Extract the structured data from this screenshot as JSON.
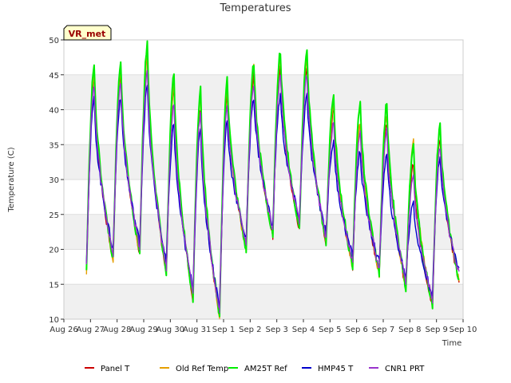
{
  "chart_data": {
    "type": "line",
    "title": "Temperatures",
    "xlabel": "Time",
    "ylabel": "Temperature (C)",
    "ylim": [
      10,
      50
    ],
    "xlim": [
      "2024-08-26",
      "2024-09-10"
    ],
    "yticks": [
      10,
      15,
      20,
      25,
      30,
      35,
      40,
      45,
      50
    ],
    "xticks": [
      "Aug 26",
      "Aug 27",
      "Aug 28",
      "Aug 29",
      "Aug 30",
      "Aug 31",
      "Sep 1",
      "Sep 2",
      "Sep 3",
      "Sep 4",
      "Sep 5",
      "Sep 6",
      "Sep 7",
      "Sep 8",
      "Sep 9",
      "Sep 10"
    ],
    "grid": true,
    "legend_position": "bottom",
    "annotation": "VR_met",
    "peaks": [
      {
        "day": "Aug 27",
        "min": 17.0,
        "panel": 44.5,
        "oldref": 45.5,
        "am25t": 46.5,
        "hmp45": 41.5,
        "cnr1": 43.5
      },
      {
        "day": "Aug 28",
        "min": 18.5,
        "panel": 45.0,
        "oldref": 45.5,
        "am25t": 46.5,
        "hmp45": 42.0,
        "cnr1": 44.0
      },
      {
        "day": "Aug 29",
        "min": 19.5,
        "panel": 47.5,
        "oldref": 48.0,
        "am25t": 49.5,
        "hmp45": 43.5,
        "cnr1": 46.0
      },
      {
        "day": "Aug 30",
        "min": 16.5,
        "panel": 43.5,
        "oldref": 44.0,
        "am25t": 45.0,
        "hmp45": 38.0,
        "cnr1": 41.0
      },
      {
        "day": "Aug 31",
        "min": 13.0,
        "panel": 40.5,
        "oldref": 41.5,
        "am25t": 43.0,
        "hmp45": 37.0,
        "cnr1": 39.5
      },
      {
        "day": "Sep 1",
        "min": 10.5,
        "panel": 42.5,
        "oldref": 43.0,
        "am25t": 44.5,
        "hmp45": 38.5,
        "cnr1": 41.0
      },
      {
        "day": "Sep 2",
        "min": 20.0,
        "panel": 45.0,
        "oldref": 46.0,
        "am25t": 47.0,
        "hmp45": 42.0,
        "cnr1": 44.0
      },
      {
        "day": "Sep 3",
        "min": 22.0,
        "panel": 46.0,
        "oldref": 47.5,
        "am25t": 48.5,
        "hmp45": 42.0,
        "cnr1": 45.0
      },
      {
        "day": "Sep 4",
        "min": 23.0,
        "panel": 46.5,
        "oldref": 47.5,
        "am25t": 48.5,
        "hmp45": 42.0,
        "cnr1": 45.0
      },
      {
        "day": "Sep 5",
        "min": 21.0,
        "panel": 40.0,
        "oldref": 40.5,
        "am25t": 42.0,
        "hmp45": 35.5,
        "cnr1": 38.0
      },
      {
        "day": "Sep 6",
        "min": 17.5,
        "panel": 38.0,
        "oldref": 38.5,
        "am25t": 41.0,
        "hmp45": 34.0,
        "cnr1": 36.5
      },
      {
        "day": "Sep 7",
        "min": 16.5,
        "panel": 38.5,
        "oldref": 39.5,
        "am25t": 41.0,
        "hmp45": 33.5,
        "cnr1": 37.0
      },
      {
        "day": "Sep 8",
        "min": 14.5,
        "panel": 32.5,
        "oldref": 35.5,
        "am25t": 35.0,
        "hmp45": 27.0,
        "cnr1": 31.0
      },
      {
        "day": "Sep 9",
        "min": 12.0,
        "panel": 36.0,
        "oldref": 37.0,
        "am25t": 38.0,
        "hmp45": 33.5,
        "cnr1": 35.0
      },
      {
        "day": "Sep 9 end",
        "min": 15.5
      }
    ],
    "series": [
      {
        "name": "Panel T",
        "key": "panel",
        "color": "#cc0000"
      },
      {
        "name": "Old Ref Temp",
        "key": "oldref",
        "color": "#e69f00"
      },
      {
        "name": "AM25T Ref",
        "key": "am25t",
        "color": "#00ee00"
      },
      {
        "name": "HMP45 T",
        "key": "hmp45",
        "color": "#0000cc"
      },
      {
        "name": "CNR1 PRT",
        "key": "cnr1",
        "color": "#9933cc"
      }
    ]
  }
}
